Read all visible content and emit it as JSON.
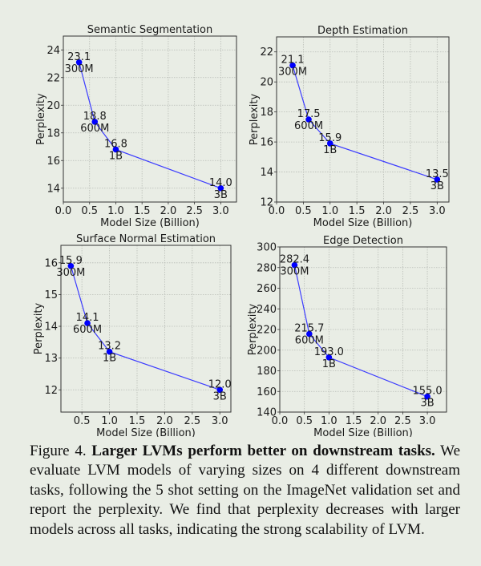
{
  "chart_data": [
    {
      "type": "line",
      "title": "Semantic Segmentation",
      "xlabel": "Model Size (Billion)",
      "ylabel": "Perplexity",
      "x": [
        0.3,
        0.6,
        1.0,
        3.0
      ],
      "values": [
        23.1,
        18.8,
        16.8,
        14.0
      ],
      "value_labels": [
        "23.1",
        "18.8",
        "16.8",
        "14.0"
      ],
      "point_labels": [
        "300M",
        "600M",
        "1B",
        "3B"
      ],
      "xlim": [
        0,
        3.3
      ],
      "ylim": [
        13,
        25
      ],
      "xticks": [
        "0.0",
        "0.5",
        "1.0",
        "1.5",
        "2.0",
        "2.5",
        "3.0"
      ],
      "yticks": [
        "14",
        "16",
        "18",
        "20",
        "22",
        "24"
      ],
      "grid": true
    },
    {
      "type": "line",
      "title": "Depth Estimation",
      "xlabel": "Model Size (Billion)",
      "ylabel": "Perplexity",
      "x": [
        0.3,
        0.6,
        1.0,
        3.0
      ],
      "values": [
        21.1,
        17.5,
        15.9,
        13.5
      ],
      "value_labels": [
        "21.1",
        "17.5",
        "15.9",
        "13.5"
      ],
      "point_labels": [
        "300M",
        "600M",
        "1B",
        "3B"
      ],
      "xlim": [
        0,
        3.22
      ],
      "ylim": [
        12,
        23
      ],
      "xticks": [
        "0.0",
        "0.5",
        "1.0",
        "1.5",
        "2.0",
        "2.5",
        "3.0"
      ],
      "yticks": [
        "12",
        "14",
        "16",
        "18",
        "20",
        "22"
      ],
      "grid": true
    },
    {
      "type": "line",
      "title": "Surface Normal Estimation",
      "xlabel": "Model Size (Billion)",
      "ylabel": "Perplexity",
      "x": [
        0.3,
        0.6,
        1.0,
        3.0
      ],
      "values": [
        15.9,
        14.1,
        13.2,
        12.0
      ],
      "value_labels": [
        "15.9",
        "14.1",
        "13.2",
        "12.0"
      ],
      "point_labels": [
        "300M",
        "600M",
        "1B",
        "3B"
      ],
      "xlim": [
        0.12,
        3.2
      ],
      "ylim": [
        11.3,
        16.55
      ],
      "xticks": [
        "0.5",
        "1.0",
        "1.5",
        "2.0",
        "2.5",
        "3.0"
      ],
      "yticks": [
        "12",
        "13",
        "14",
        "15",
        "16"
      ],
      "grid": true
    },
    {
      "type": "line",
      "title": "Edge Detection",
      "xlabel": "Model Size (Billion)",
      "ylabel": "Perplexity",
      "x": [
        0.3,
        0.6,
        1.0,
        3.0
      ],
      "values": [
        282.4,
        215.7,
        193.0,
        155.0
      ],
      "value_labels": [
        "282.4",
        "215.7",
        "193.0",
        "155.0"
      ],
      "point_labels": [
        "300M",
        "600M",
        "1B",
        "3B"
      ],
      "xlim": [
        0,
        3.39
      ],
      "ylim": [
        140,
        300
      ],
      "xticks": [
        "0.0",
        "0.5",
        "1.0",
        "1.5",
        "2.0",
        "2.5",
        "3.0"
      ],
      "yticks": [
        "140",
        "160",
        "180",
        "200",
        "220",
        "240",
        "260",
        "280",
        "300"
      ],
      "grid": true
    }
  ],
  "colors": {
    "line": "#3b3bff",
    "marker": "#0000ff",
    "background": "#e9ede5"
  },
  "caption": {
    "label": "Figure 4.",
    "title": "Larger LVMs perform better on downstream tasks.",
    "body": "We evaluate LVM models of varying sizes on 4 different downstream tasks, following the 5 shot setting on the ImageNet validation set and report the perplexity. We find that perplexity decreases with larger models across all tasks, indicating the strong scalability of LVM."
  }
}
